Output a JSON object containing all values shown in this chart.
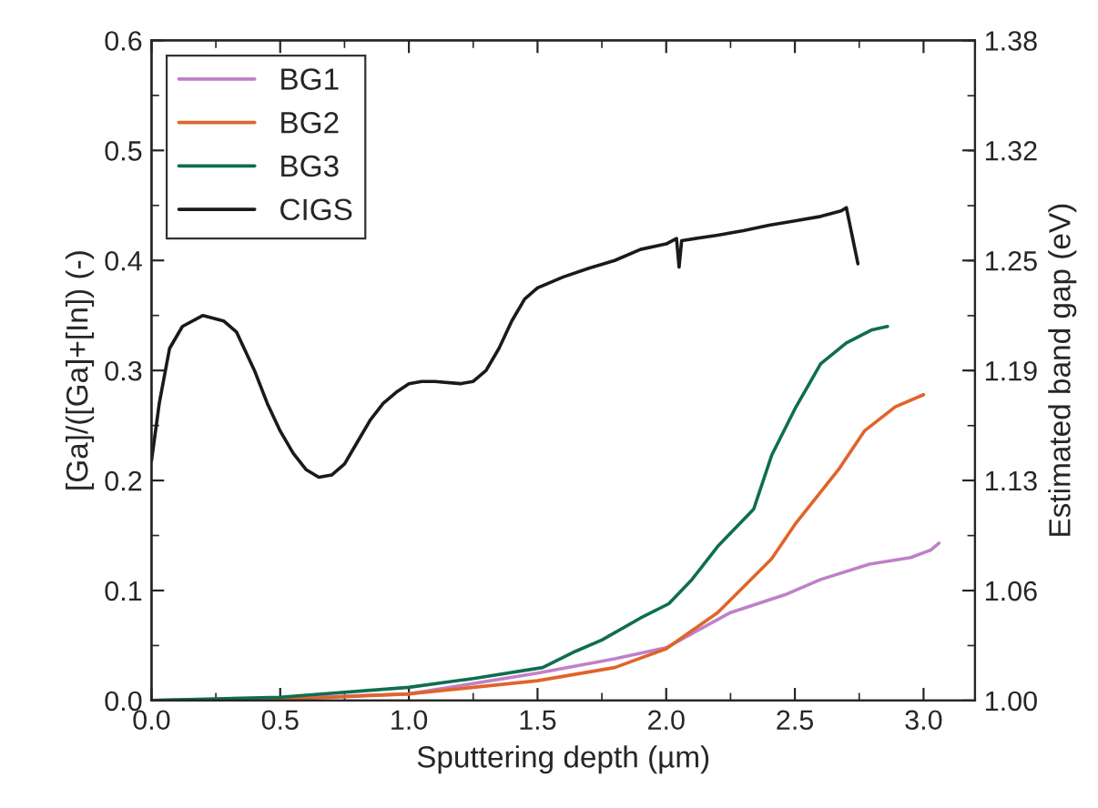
{
  "chart_data": {
    "type": "line",
    "xlabel": "Sputtering depth (µm)",
    "ylabel": "[Ga]/([Ga]+[In]) (-)",
    "y2label": "Estimated band gap (eV)",
    "xlim": [
      0,
      3.2
    ],
    "xticks": [
      {
        "value": 0,
        "label": "0.0"
      },
      0.5,
      {
        "value": 1,
        "label": "1.0"
      },
      1.5,
      {
        "value": 2,
        "label": "2.0"
      },
      2.5,
      {
        "value": 3,
        "label": "3.0"
      }
    ],
    "ylim": [
      0,
      0.6
    ],
    "yticks": [
      {
        "value": 0,
        "label": "0.0"
      },
      0.1,
      0.2,
      0.3,
      0.4,
      0.5,
      0.6
    ],
    "y2lim": [
      1.0,
      1.38
    ],
    "y2ticks": [
      {
        "value": 1.0,
        "label": "1.00"
      },
      {
        "value": 1.0633,
        "label": "1.06"
      },
      {
        "value": 1.1267,
        "label": "1.13"
      },
      1.19,
      {
        "value": 1.2533,
        "label": "1.25"
      },
      {
        "value": 1.3167,
        "label": "1.32"
      },
      1.38
    ],
    "legend": "top left",
    "grid": false,
    "series": [
      {
        "name": "BG1",
        "color": "#c080c8",
        "x": [
          0,
          0.5,
          1.0,
          1.5,
          1.8,
          2.0,
          2.25,
          2.46,
          2.6,
          2.79,
          2.95,
          3.03,
          3.06
        ],
        "values": [
          0,
          0.002,
          0.006,
          0.025,
          0.038,
          0.048,
          0.08,
          0.096,
          0.11,
          0.124,
          0.13,
          0.137,
          0.143
        ]
      },
      {
        "name": "BG2",
        "color": "#e0642a",
        "x": [
          0,
          0.5,
          1.0,
          1.5,
          1.8,
          2.0,
          2.2,
          2.41,
          2.5,
          2.67,
          2.77,
          2.89,
          3.0
        ],
        "values": [
          0,
          0.001,
          0.006,
          0.018,
          0.03,
          0.047,
          0.08,
          0.129,
          0.16,
          0.21,
          0.245,
          0.267,
          0.278
        ]
      },
      {
        "name": "BG3",
        "color": "#0f6e50",
        "x": [
          0,
          0.5,
          1.0,
          1.25,
          1.52,
          1.65,
          1.75,
          1.9,
          2.01,
          2.1,
          2.2,
          2.34,
          2.41,
          2.5,
          2.6,
          2.7,
          2.8,
          2.86
        ],
        "values": [
          0,
          0.003,
          0.012,
          0.02,
          0.03,
          0.045,
          0.055,
          0.075,
          0.088,
          0.11,
          0.14,
          0.174,
          0.223,
          0.265,
          0.306,
          0.325,
          0.337,
          0.34
        ]
      },
      {
        "name": "CIGS",
        "color": "#1a1a1a",
        "x": [
          0,
          0.03,
          0.07,
          0.12,
          0.2,
          0.28,
          0.33,
          0.4,
          0.45,
          0.5,
          0.55,
          0.6,
          0.65,
          0.7,
          0.75,
          0.8,
          0.85,
          0.9,
          0.95,
          1.0,
          1.05,
          1.1,
          1.2,
          1.25,
          1.3,
          1.35,
          1.4,
          1.45,
          1.5,
          1.6,
          1.7,
          1.8,
          1.9,
          2.0,
          2.04,
          2.05,
          2.06,
          2.2,
          2.3,
          2.4,
          2.5,
          2.6,
          2.68,
          2.7,
          2.745
        ],
        "values": [
          0.218,
          0.27,
          0.32,
          0.34,
          0.35,
          0.345,
          0.335,
          0.3,
          0.27,
          0.245,
          0.225,
          0.21,
          0.203,
          0.205,
          0.215,
          0.235,
          0.255,
          0.27,
          0.28,
          0.288,
          0.29,
          0.29,
          0.288,
          0.29,
          0.3,
          0.32,
          0.345,
          0.365,
          0.375,
          0.385,
          0.393,
          0.4,
          0.41,
          0.415,
          0.42,
          0.394,
          0.418,
          0.423,
          0.427,
          0.432,
          0.436,
          0.44,
          0.445,
          0.448,
          0.397
        ]
      }
    ]
  }
}
